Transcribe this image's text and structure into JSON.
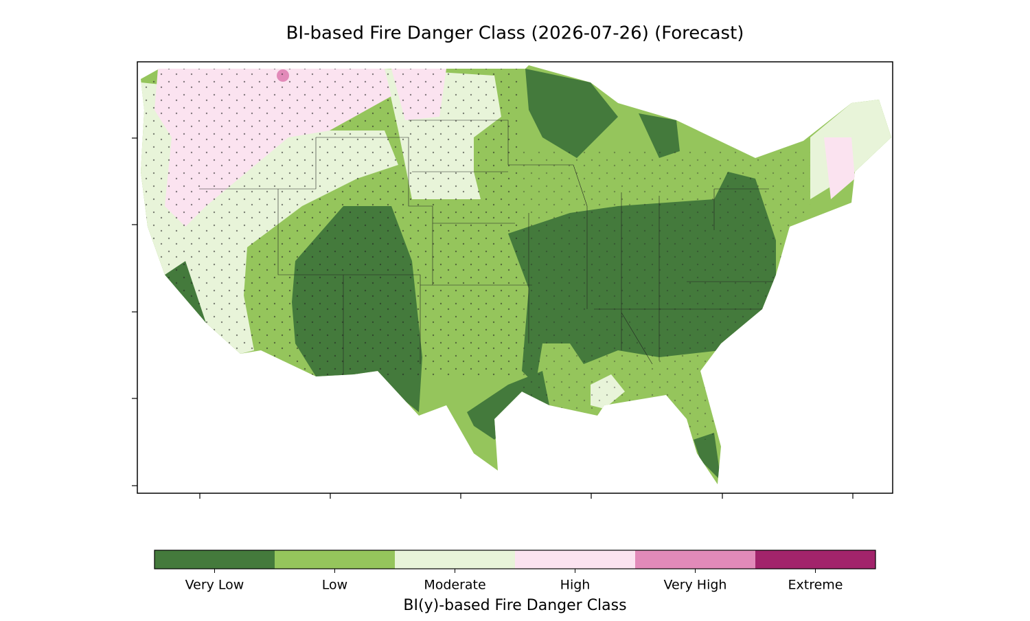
{
  "title": "BI-based Fire Danger Class (2026-07-26) (Forecast)",
  "colorbar": {
    "label": "BI(y)-based Fire Danger Class",
    "classes": [
      {
        "name": "Very Low",
        "color": "#447a3c"
      },
      {
        "name": "Low",
        "color": "#95c55c"
      },
      {
        "name": "Moderate",
        "color": "#e8f4d9"
      },
      {
        "name": "High",
        "color": "#fbe3f0"
      },
      {
        "name": "Very High",
        "color": "#e28ab9"
      },
      {
        "name": "Extreme",
        "color": "#a2246b"
      }
    ]
  }
}
